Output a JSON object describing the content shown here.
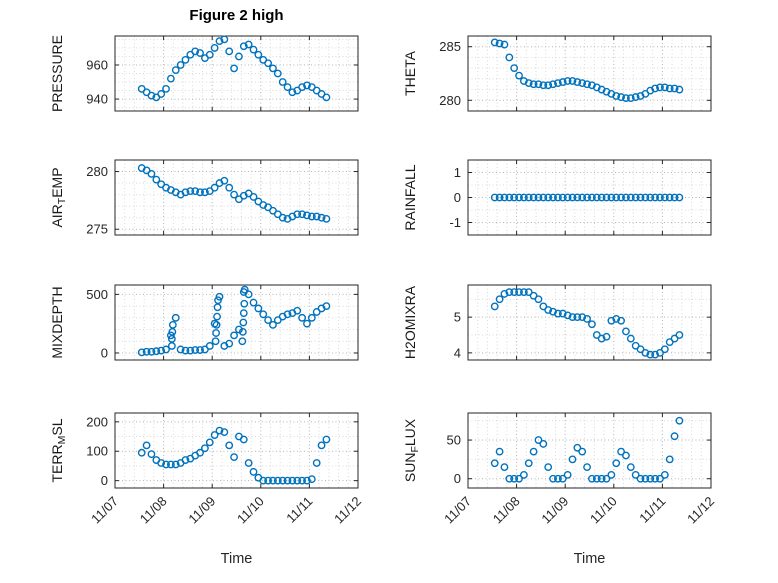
{
  "title": "Figure 2 high",
  "style": {
    "marker_color": "#0072BD",
    "axis_color": "#262626",
    "grid_major_color": "#b4b4b4",
    "grid_minor_color": "#d9d9d9",
    "tick_label_color": "#262626",
    "background": "#ffffff"
  },
  "x_axis": {
    "label": "Time",
    "lim": [
      0,
      5
    ],
    "minor_step": 0.2,
    "ticks": [
      0,
      1,
      2,
      3,
      4,
      5
    ],
    "tick_labels": [
      "11/07",
      "11/08",
      "11/09",
      "11/10",
      "11/11",
      "11/12"
    ]
  },
  "x_shared": [
    0.55,
    0.65,
    0.75,
    0.85,
    0.95,
    1.05,
    1.15,
    1.25,
    1.35,
    1.45,
    1.55,
    1.65,
    1.75,
    1.85,
    1.95,
    2.05,
    2.15,
    2.25,
    2.35,
    2.45,
    2.55,
    2.65,
    2.75,
    2.85,
    2.95,
    3.05,
    3.15,
    3.25,
    3.35,
    3.45,
    3.55,
    3.65,
    3.75,
    3.85,
    3.95,
    4.05,
    4.15,
    4.25,
    4.35
  ],
  "chart_data": [
    {
      "name": "pressure",
      "type": "scatter",
      "ylabel_parts": [
        {
          "t": "PRESSURE",
          "sub": false
        }
      ],
      "ylim": [
        933,
        977
      ],
      "yticks": [
        940,
        960
      ],
      "y_minor_step": 5,
      "y": [
        946,
        944,
        942,
        941,
        943,
        946,
        952,
        957,
        960,
        963,
        966,
        968,
        967,
        964,
        966,
        970,
        974,
        975,
        968,
        958,
        965,
        971,
        972,
        969,
        966,
        963,
        961,
        958,
        955,
        950,
        947,
        944,
        945,
        947,
        948,
        947,
        945,
        943,
        941
      ]
    },
    {
      "name": "theta",
      "type": "scatter",
      "ylabel_parts": [
        {
          "t": "THETA",
          "sub": false
        }
      ],
      "ylim": [
        279,
        286
      ],
      "yticks": [
        280,
        285
      ],
      "y_minor_step": 1,
      "y": [
        285.4,
        285.3,
        285.2,
        284,
        283,
        282.3,
        281.8,
        281.6,
        281.5,
        281.5,
        281.4,
        281.4,
        281.5,
        281.6,
        281.7,
        281.8,
        281.8,
        281.7,
        281.6,
        281.5,
        281.4,
        281.2,
        281,
        280.8,
        280.6,
        280.4,
        280.3,
        280.2,
        280.2,
        280.3,
        280.4,
        280.6,
        280.9,
        281.1,
        281.2,
        281.2,
        281.1,
        281.1,
        281
      ]
    },
    {
      "name": "air_temp",
      "type": "scatter",
      "ylabel_parts": [
        {
          "t": "AIR",
          "sub": false
        },
        {
          "t": "T",
          "sub": true
        },
        {
          "t": "EMP",
          "sub": false
        }
      ],
      "ylim": [
        274.5,
        281
      ],
      "yticks": [
        275,
        280
      ],
      "y_minor_step": 1,
      "y": [
        280.3,
        280.1,
        279.8,
        279.3,
        278.9,
        278.6,
        278.4,
        278.2,
        278,
        278.2,
        278.3,
        278.3,
        278.2,
        278.2,
        278.3,
        278.6,
        279,
        279.2,
        278.6,
        278,
        277.6,
        277.9,
        278.1,
        277.8,
        277.4,
        277.1,
        276.9,
        276.6,
        276.3,
        276,
        275.9,
        276.1,
        276.3,
        276.3,
        276.2,
        276.1,
        276.1,
        276,
        275.9
      ]
    },
    {
      "name": "rainfall",
      "type": "scatter",
      "ylabel_parts": [
        {
          "t": "RAINFALL",
          "sub": false
        }
      ],
      "ylim": [
        -1.5,
        1.5
      ],
      "yticks": [
        -1,
        0,
        1
      ],
      "y_minor_step": 0.5,
      "y": [
        0,
        0,
        0,
        0,
        0,
        0,
        0,
        0,
        0,
        0,
        0,
        0,
        0,
        0,
        0,
        0,
        0,
        0,
        0,
        0,
        0,
        0,
        0,
        0,
        0,
        0,
        0,
        0,
        0,
        0,
        0,
        0,
        0,
        0,
        0,
        0,
        0,
        0,
        0
      ]
    },
    {
      "name": "mixdepth",
      "type": "scatter",
      "ylabel_parts": [
        {
          "t": "MIXDEPTH",
          "sub": false
        }
      ],
      "ylim": [
        -60,
        580
      ],
      "yticks": [
        0,
        500
      ],
      "y_minor_step": 100,
      "y": [
        5,
        10,
        10,
        15,
        20,
        30,
        150,
        300,
        30,
        20,
        20,
        25,
        25,
        30,
        60,
        250,
        480,
        60,
        80,
        150,
        200,
        520,
        500,
        430,
        380,
        330,
        280,
        240,
        280,
        310,
        330,
        340,
        360,
        300,
        250,
        300,
        350,
        380,
        400
      ],
      "extra_points": [
        [
          1.17,
          60
        ],
        [
          1.17,
          120
        ],
        [
          1.18,
          180
        ],
        [
          1.19,
          240
        ],
        [
          2.07,
          100
        ],
        [
          2.08,
          170
        ],
        [
          2.09,
          240
        ],
        [
          2.1,
          310
        ],
        [
          2.11,
          390
        ],
        [
          2.12,
          450
        ],
        [
          2.62,
          100
        ],
        [
          2.63,
          180
        ],
        [
          2.64,
          260
        ],
        [
          2.65,
          340
        ],
        [
          2.66,
          420
        ],
        [
          2.67,
          540
        ]
      ]
    },
    {
      "name": "h2omixra",
      "type": "scatter",
      "ylabel_parts": [
        {
          "t": "H2OMIXRA",
          "sub": false
        }
      ],
      "ylim": [
        3.8,
        5.9
      ],
      "yticks": [
        4,
        5
      ],
      "y_minor_step": 0.5,
      "y": [
        5.3,
        5.5,
        5.65,
        5.7,
        5.7,
        5.7,
        5.7,
        5.7,
        5.6,
        5.5,
        5.3,
        5.2,
        5.15,
        5.1,
        5.1,
        5.05,
        5,
        5,
        5,
        4.95,
        4.8,
        4.5,
        4.4,
        4.45,
        4.9,
        4.95,
        4.9,
        4.6,
        4.4,
        4.2,
        4.1,
        4,
        3.95,
        3.95,
        4,
        4.1,
        4.3,
        4.4,
        4.5
      ]
    },
    {
      "name": "terr_msl",
      "type": "scatter",
      "ylabel_parts": [
        {
          "t": "TERR",
          "sub": false
        },
        {
          "t": "M",
          "sub": true
        },
        {
          "t": "SL",
          "sub": false
        }
      ],
      "ylim": [
        -25,
        230
      ],
      "yticks": [
        0,
        100,
        200
      ],
      "y_minor_step": 50,
      "y": [
        95,
        120,
        90,
        70,
        60,
        55,
        55,
        55,
        60,
        70,
        75,
        85,
        95,
        110,
        130,
        155,
        170,
        165,
        120,
        80,
        150,
        140,
        60,
        30,
        10,
        0,
        0,
        0,
        0,
        0,
        0,
        0,
        0,
        0,
        0,
        5,
        60,
        120,
        140
      ]
    },
    {
      "name": "sun_flux",
      "type": "scatter",
      "ylabel_parts": [
        {
          "t": "SUN",
          "sub": false
        },
        {
          "t": "F",
          "sub": true
        },
        {
          "t": "LUX",
          "sub": false
        }
      ],
      "ylim": [
        -12,
        85
      ],
      "yticks": [
        0,
        50
      ],
      "y_minor_step": 25,
      "y": [
        20,
        35,
        15,
        0,
        0,
        0,
        5,
        20,
        35,
        50,
        45,
        15,
        0,
        0,
        0,
        5,
        25,
        40,
        35,
        15,
        0,
        0,
        0,
        0,
        5,
        20,
        35,
        30,
        15,
        5,
        0,
        0,
        0,
        0,
        0,
        5,
        25,
        55,
        75
      ]
    }
  ]
}
